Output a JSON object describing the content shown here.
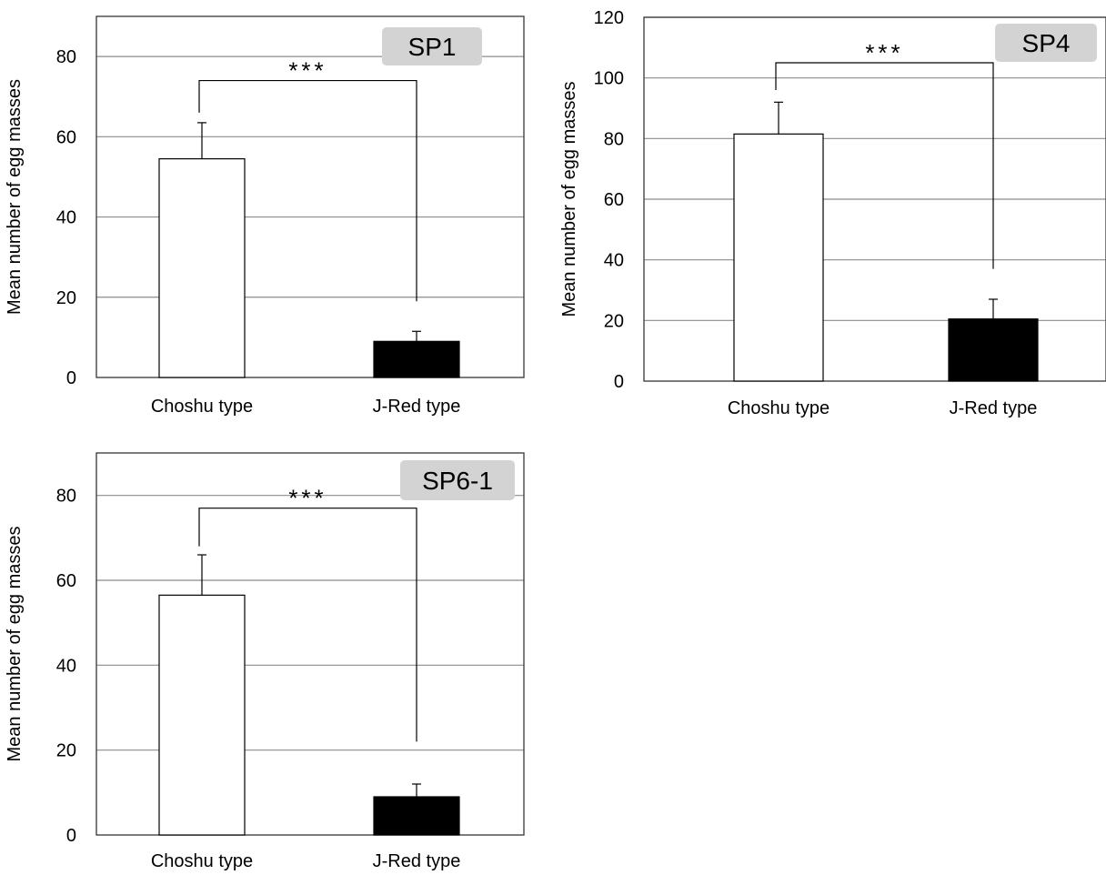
{
  "chart_data": [
    {
      "type": "bar",
      "panel_label": "SP1",
      "categories": [
        "Choshu type",
        "J-Red type"
      ],
      "values": [
        54.5,
        9
      ],
      "error_upper": [
        63.5,
        11.5
      ],
      "bar_colors": [
        "#ffffff",
        "#000000"
      ],
      "ylabel": "Mean number of egg masses",
      "ylim": [
        0,
        90
      ],
      "yticks": [
        0,
        20,
        40,
        60,
        80
      ],
      "grid": true,
      "significance": {
        "label": "***",
        "bracket_y": 74,
        "left_end": 66,
        "right_end": 19
      }
    },
    {
      "type": "bar",
      "panel_label": "SP4",
      "categories": [
        "Choshu type",
        "J-Red type"
      ],
      "values": [
        81.5,
        20.5
      ],
      "error_upper": [
        92,
        27
      ],
      "bar_colors": [
        "#ffffff",
        "#000000"
      ],
      "ylabel": "Mean number of egg masses",
      "ylim": [
        0,
        120
      ],
      "yticks": [
        0,
        20,
        40,
        60,
        80,
        100,
        120
      ],
      "grid": true,
      "significance": {
        "label": "***",
        "bracket_y": 105,
        "left_end": 96,
        "right_end": 37
      }
    },
    {
      "type": "bar",
      "panel_label": "SP6-1",
      "categories": [
        "Choshu type",
        "J-Red type"
      ],
      "values": [
        56.5,
        9
      ],
      "error_upper": [
        66,
        12
      ],
      "bar_colors": [
        "#ffffff",
        "#000000"
      ],
      "ylabel": "Mean number of egg masses",
      "ylim": [
        0,
        90
      ],
      "yticks": [
        0,
        20,
        40,
        60,
        80
      ],
      "grid": true,
      "significance": {
        "label": "***",
        "bracket_y": 77,
        "left_end": 68,
        "right_end": 22
      }
    }
  ]
}
